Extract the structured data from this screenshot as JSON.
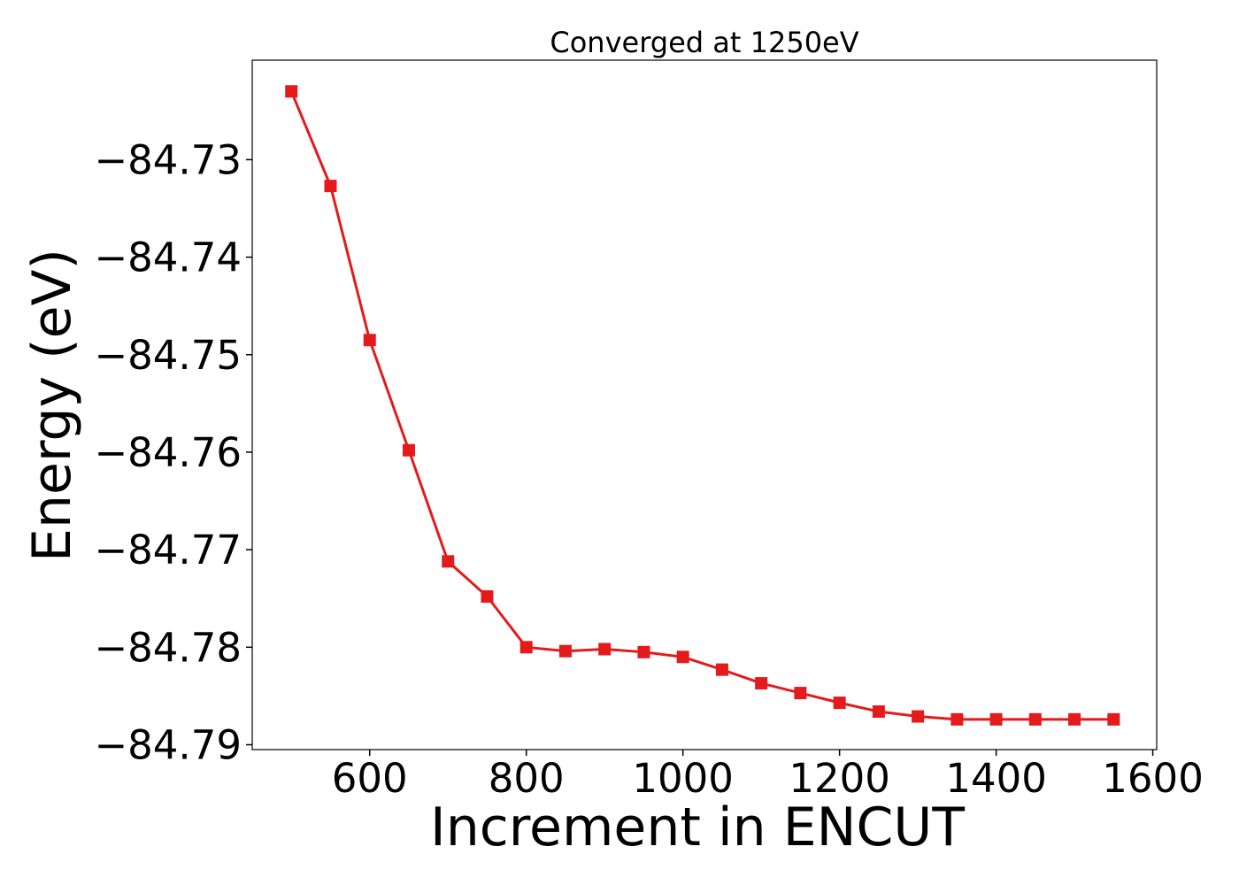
{
  "chart_data": {
    "type": "line",
    "title": "Converged at 1250eV",
    "xlabel": "Increment in ENCUT",
    "ylabel": "Energy (eV)",
    "xlim": [
      450,
      1605
    ],
    "ylim": [
      -84.7905,
      -84.7198
    ],
    "xticks": [
      600,
      800,
      1000,
      1200,
      1400,
      1600
    ],
    "yticks": [
      -84.73,
      -84.74,
      -84.75,
      -84.76,
      -84.77,
      -84.78,
      -84.79
    ],
    "ytick_labels": [
      "−84.73",
      "−84.74",
      "−84.75",
      "−84.76",
      "−84.77",
      "−84.78",
      "−84.79"
    ],
    "grid": false,
    "legend": false,
    "marker": "square",
    "color": "#e41a1c",
    "series": [
      {
        "x": [
          500,
          550,
          600,
          650,
          700,
          750,
          800,
          850,
          900,
          950,
          1000,
          1050,
          1100,
          1150,
          1200,
          1250,
          1300,
          1350,
          1400,
          1450,
          1500,
          1550
        ],
        "y": [
          -84.723,
          -84.7327,
          -84.7485,
          -84.7598,
          -84.7712,
          -84.7748,
          -84.78,
          -84.7804,
          -84.7802,
          -84.7805,
          -84.781,
          -84.7823,
          -84.7837,
          -84.7847,
          -84.7857,
          -84.7866,
          -84.7871,
          -84.7874,
          -84.7874,
          -84.7874,
          -84.7874,
          -84.7874
        ]
      }
    ]
  }
}
